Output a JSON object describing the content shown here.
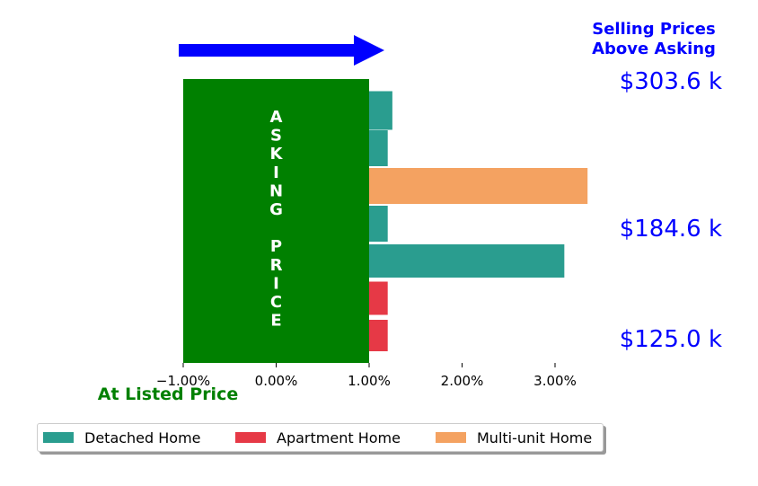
{
  "chart_data": {
    "type": "bar",
    "orientation": "horizontal",
    "x_ticks": [
      "−1.00%",
      "0.00%",
      "1.00%",
      "2.00%",
      "3.00%"
    ],
    "x_tick_values": [
      -1,
      0,
      1,
      2,
      3
    ],
    "xlim": [
      -1.0,
      3.5
    ],
    "asking_price_block": {
      "label_lines": [
        "A",
        "S",
        "K",
        "I",
        "N",
        "G",
        "",
        "P",
        "R",
        "I",
        "C",
        "E"
      ],
      "x_start": -1.0,
      "x_end": 1.0,
      "color": "#008000"
    },
    "bars": [
      {
        "series": "Detached Home",
        "start": 1.0,
        "value": 1.25
      },
      {
        "series": "Detached Home",
        "start": 1.0,
        "value": 1.2
      },
      {
        "series": "Multi-unit Home",
        "start": 1.0,
        "value": 3.35
      },
      {
        "series": "Detached Home",
        "start": 1.0,
        "value": 1.2
      },
      {
        "series": "Detached Home",
        "start": 1.0,
        "value": 3.1
      },
      {
        "series": "Apartment Home",
        "start": 1.0,
        "value": 1.2
      },
      {
        "series": "Apartment Home",
        "start": 1.0,
        "value": 1.2
      }
    ],
    "series": [
      {
        "name": "Detached Home",
        "color": "#2a9d8f"
      },
      {
        "name": "Apartment Home",
        "color": "#e63946"
      },
      {
        "name": "Multi-unit Home",
        "color": "#f4a261"
      }
    ],
    "price_labels": [
      "$303.6 k",
      "$184.6 k",
      "$125.0 k"
    ],
    "top_label_lines": [
      "Selling Prices",
      "Above Asking"
    ],
    "bottom_label": "At Listed Price",
    "colors": {
      "arrow": "#0000ff",
      "price_text": "#0000ff",
      "listed_text": "#008000"
    },
    "legend_position": "bottom-left"
  }
}
